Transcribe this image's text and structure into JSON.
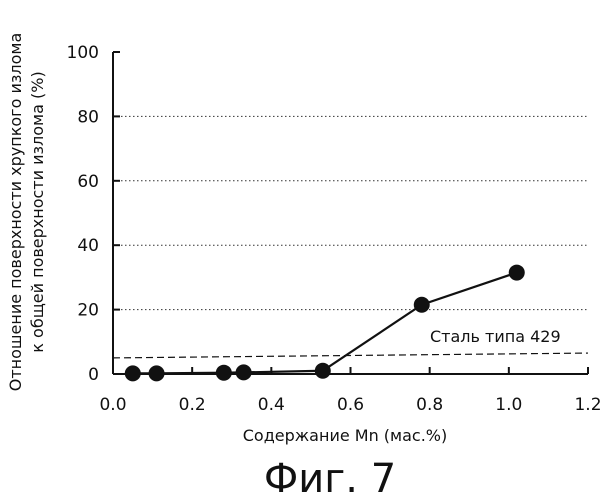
{
  "chart_data": {
    "type": "line",
    "title": "",
    "xlabel": "Содержание Mn (мас.%)",
    "ylabel_line1": "Отношение поверхности хрупкого излома",
    "ylabel_line2": "к общей поверхности излома (%)",
    "xlim": [
      0.0,
      1.2
    ],
    "ylim": [
      0,
      100
    ],
    "x_ticks": [
      "0.0",
      "0.2",
      "0.4",
      "0.6",
      "0.8",
      "1.0",
      "1.2"
    ],
    "y_ticks": [
      "0",
      "20",
      "40",
      "60",
      "80",
      "100"
    ],
    "grid": "horizontal dotted",
    "series": [
      {
        "x": [
          0.05,
          0.11,
          0.28,
          0.33,
          0.53,
          0.78,
          1.02
        ],
        "y": [
          0.2,
          0.2,
          0.4,
          0.5,
          1.0,
          21.5,
          31.5
        ]
      }
    ],
    "reference_line": {
      "label": "Сталь типа 429",
      "y_start": 5.0,
      "y_end": 6.5
    }
  },
  "caption": "Фиг. 7"
}
